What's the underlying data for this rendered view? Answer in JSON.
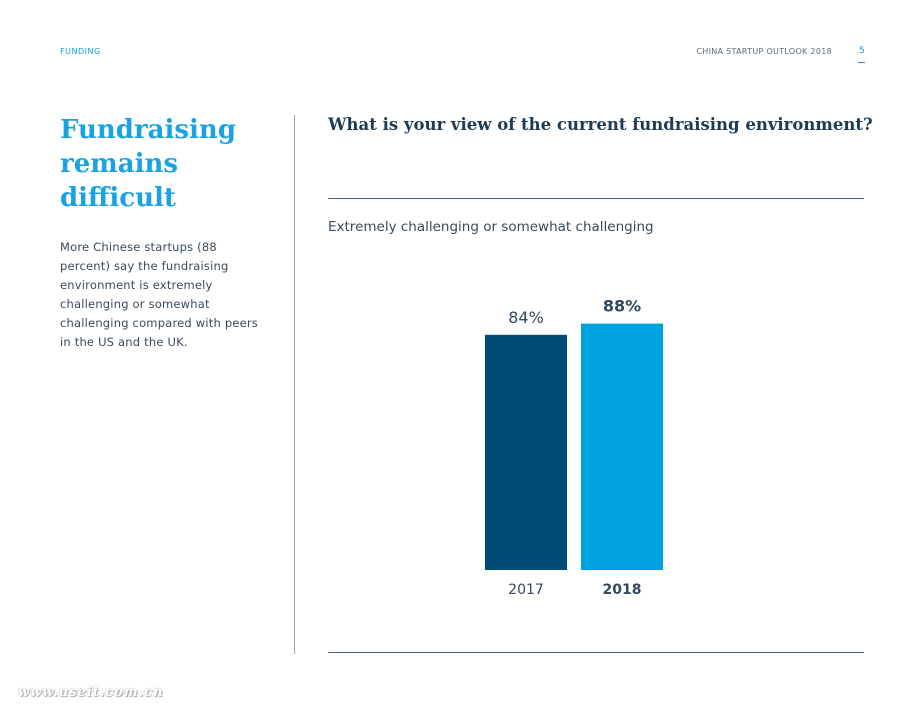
{
  "header": {
    "section": "FUNDING",
    "report_title": "CHINA STARTUP OUTLOOK 2018",
    "page_number": "5"
  },
  "sidebar": {
    "headline": "Fundraising remains difficult",
    "body": "More Chinese startups (88 percent) say the fundraising environment is extremely challenging or somewhat challenging compared with peers in the US and the UK."
  },
  "chart_data": {
    "type": "bar",
    "title": "What is your view of the current fundraising environment?",
    "subtitle": "Extremely challenging or somewhat challenging",
    "categories": [
      "2017",
      "2018"
    ],
    "values": [
      84,
      88
    ],
    "labels": [
      "84%",
      "88%"
    ],
    "highlight_index": 1,
    "colors": [
      "#004c74",
      "#00a3e0"
    ],
    "label_color": "#34495e",
    "xlabel": "",
    "ylabel": "",
    "grid": false
  },
  "watermark": "www.useit.com.cn",
  "colors": {
    "accent": "#1ba2e0",
    "navy": "#1d3b54"
  }
}
